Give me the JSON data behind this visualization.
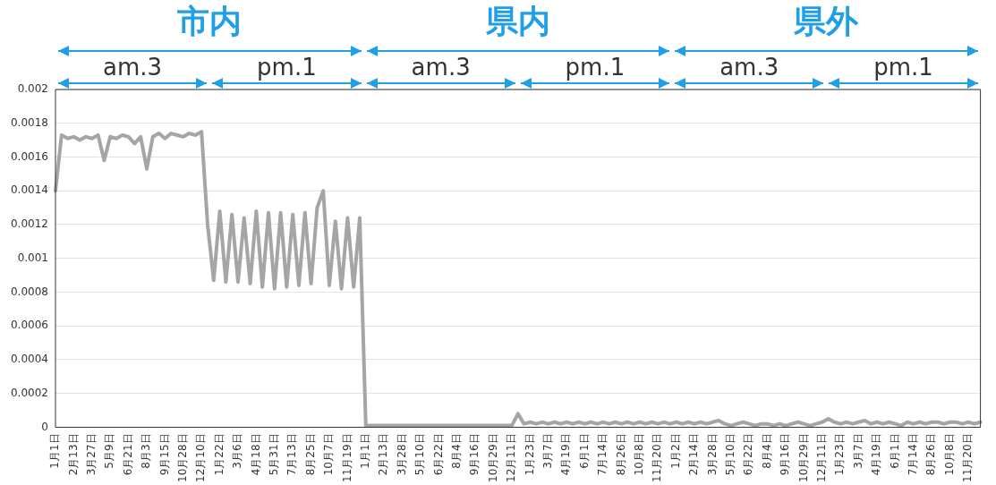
{
  "chart_data": {
    "type": "line",
    "annotations": [
      "市内",
      "県内",
      "県外",
      "am.3",
      "pm.1",
      "am.3",
      "pm.1",
      "am.3",
      "pm.1"
    ],
    "categories": [
      "1月1日",
      null,
      null,
      "2月13日",
      null,
      null,
      "3月27日",
      null,
      null,
      "5月9日",
      null,
      null,
      "6月21日",
      null,
      null,
      "8月3日",
      null,
      null,
      "9月15日",
      null,
      null,
      "10月28日",
      null,
      null,
      "12月10日",
      null,
      null,
      "1月22日",
      null,
      null,
      "3月6日",
      null,
      null,
      "4月18日",
      null,
      null,
      "5月31日",
      null,
      null,
      "7月13日",
      null,
      null,
      "8月25日",
      null,
      null,
      "10月7日",
      null,
      null,
      "11月19日",
      null,
      null,
      "1月1日",
      null,
      null,
      "2月13日",
      null,
      null,
      "3月28日",
      null,
      null,
      "5月10日",
      null,
      null,
      "6月22日",
      null,
      null,
      "8月4日",
      null,
      null,
      "9月16日",
      null,
      null,
      "10月29日",
      null,
      null,
      "12月11日",
      null,
      null,
      "1月23日",
      null,
      null,
      "3月7日",
      null,
      null,
      "4月19日",
      null,
      null,
      "6月1日",
      null,
      null,
      "7月14日",
      null,
      null,
      "8月26日",
      null,
      null,
      "10月8日",
      null,
      null,
      "11月20日",
      null,
      null,
      "1月2日",
      null,
      null,
      "2月14日",
      null,
      null,
      "3月28日",
      null,
      null,
      "5月10日",
      null,
      null,
      "6月22日",
      null,
      null,
      "8月4日",
      null,
      null,
      "9月16日",
      null,
      null,
      "10月29日",
      null,
      null,
      "12月11日",
      null,
      null,
      "1月23日",
      null,
      null,
      "3月7日",
      null,
      null,
      "4月19日",
      null,
      null,
      "6月1日",
      null,
      null,
      "7月14日",
      null,
      null,
      "8月26日",
      null,
      null,
      "10月8日",
      null,
      null,
      "11月20日",
      null,
      null
    ],
    "series": [
      {
        "color": "#a5a5a5",
        "values": [
          0.0014,
          0.00173,
          0.00171,
          0.00172,
          0.0017,
          0.00172,
          0.00171,
          0.00173,
          0.00158,
          0.00172,
          0.00171,
          0.00173,
          0.00172,
          0.00168,
          0.00172,
          0.00153,
          0.00172,
          0.00174,
          0.00171,
          0.00174,
          0.00173,
          0.00172,
          0.00174,
          0.00173,
          0.00175,
          0.0012,
          0.00087,
          0.00128,
          0.00086,
          0.00126,
          0.00086,
          0.00124,
          0.00085,
          0.00128,
          0.00083,
          0.00127,
          0.00082,
          0.00127,
          0.00083,
          0.00126,
          0.00084,
          0.00127,
          0.00085,
          0.0013,
          0.0014,
          0.00084,
          0.00122,
          0.00082,
          0.00124,
          0.00083,
          0.00124,
          1e-05,
          1e-05,
          1e-05,
          1e-05,
          1e-05,
          1e-05,
          1e-05,
          1e-05,
          1e-05,
          1e-05,
          1e-05,
          1e-05,
          1e-05,
          1e-05,
          1e-05,
          1e-05,
          1e-05,
          1e-05,
          1e-05,
          1e-05,
          1e-05,
          1e-05,
          1e-05,
          1e-05,
          1e-05,
          8e-05,
          2e-05,
          3e-05,
          2e-05,
          3e-05,
          2e-05,
          3e-05,
          2e-05,
          3e-05,
          2e-05,
          3e-05,
          2e-05,
          3e-05,
          2e-05,
          3e-05,
          2e-05,
          3e-05,
          2e-05,
          3e-05,
          2e-05,
          3e-05,
          2e-05,
          3e-05,
          2e-05,
          3e-05,
          2e-05,
          3e-05,
          2e-05,
          3e-05,
          2e-05,
          3e-05,
          2e-05,
          3e-05,
          4e-05,
          2e-05,
          1e-05,
          2e-05,
          3e-05,
          2e-05,
          1e-05,
          2e-05,
          2e-05,
          1e-05,
          2e-05,
          1e-05,
          2e-05,
          3e-05,
          2e-05,
          1e-05,
          2e-05,
          3e-05,
          5e-05,
          3e-05,
          2e-05,
          3e-05,
          2e-05,
          3e-05,
          4e-05,
          2e-05,
          3e-05,
          2e-05,
          3e-05,
          2e-05,
          1e-05,
          3e-05,
          2e-05,
          3e-05,
          2e-05,
          3e-05,
          3e-05,
          2e-05,
          3e-05,
          3e-05,
          2e-05,
          3e-05,
          2e-05,
          3e-05
        ]
      }
    ],
    "ylim": [
      0,
      0.002
    ],
    "yticks": [
      0,
      0.0002,
      0.0004,
      0.0006,
      0.0008,
      0.001,
      0.0012,
      0.0014,
      0.0016,
      0.0018,
      0.002
    ],
    "grid": "y",
    "marker": "none",
    "line_style": "solid"
  }
}
